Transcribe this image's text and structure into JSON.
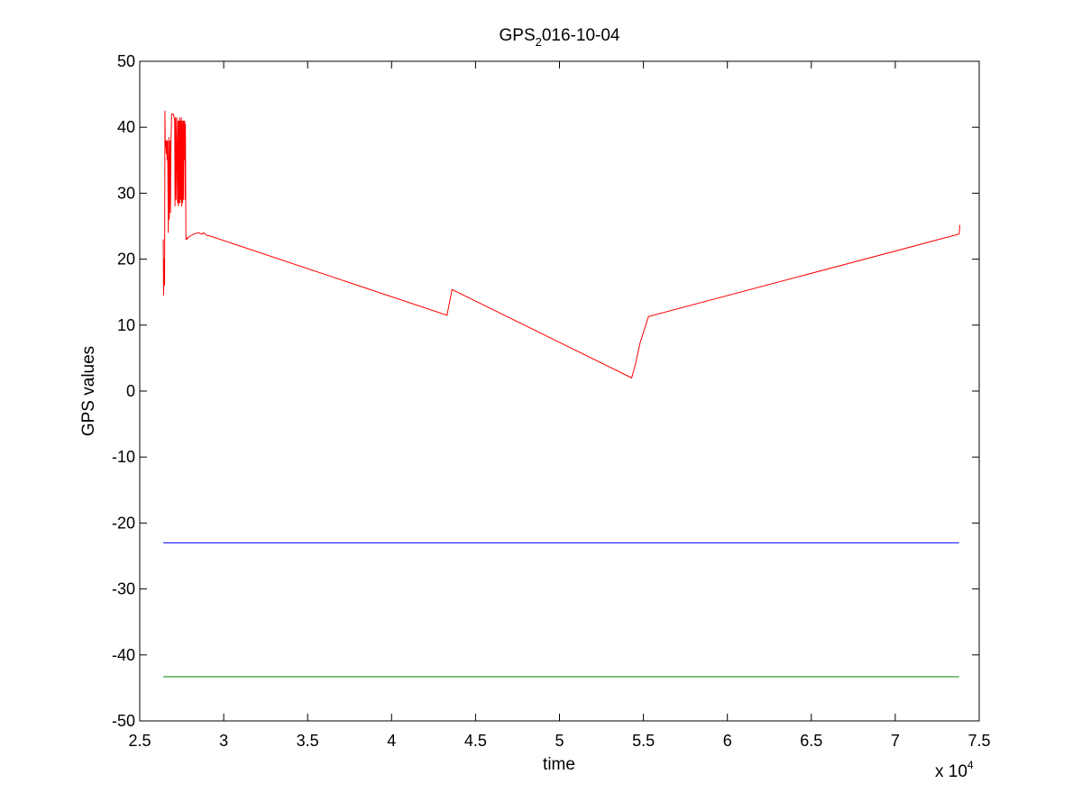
{
  "chart_data": {
    "type": "line",
    "title_main": "GPS",
    "title_sub": "2",
    "title_rest": "016-10-04",
    "xlabel": "time",
    "ylabel": "GPS values",
    "x_exponent_label": "x 10",
    "x_exponent_power": "4",
    "x_scale": 10000,
    "xlim": [
      25000,
      75000
    ],
    "ylim": [
      -50,
      50
    ],
    "x_ticks": [
      25000,
      30000,
      35000,
      40000,
      45000,
      50000,
      55000,
      60000,
      65000,
      70000,
      75000
    ],
    "x_tick_labels": [
      "2.5",
      "3",
      "3.5",
      "4",
      "4.5",
      "5",
      "5.5",
      "6",
      "6.5",
      "7",
      "7.5"
    ],
    "y_ticks": [
      50,
      40,
      30,
      20,
      10,
      0,
      -10,
      -20,
      -30,
      -40,
      -50
    ],
    "y_tick_labels": [
      "50",
      "40",
      "30",
      "20",
      "10",
      "0",
      "-10",
      "-20",
      "-30",
      "-40",
      "-50"
    ],
    "grid": false,
    "series": [
      {
        "color": "#ff0000",
        "x": [
          26400,
          26420,
          26450,
          26480,
          26500,
          26520,
          26550,
          26580,
          26600,
          26630,
          26660,
          26700,
          26730,
          26760,
          26800,
          26830,
          26860,
          26900,
          26950,
          27000,
          27050,
          27080,
          27100,
          27130,
          27160,
          27200,
          27250,
          27280,
          27300,
          27320,
          27350,
          27380,
          27400,
          27420,
          27450,
          27480,
          27500,
          27520,
          27550,
          27580,
          27600,
          27620,
          27650,
          27680,
          27700,
          27720,
          27750,
          27780,
          27800,
          27850,
          27900,
          28000,
          28200,
          28500,
          28700,
          28800,
          28900,
          29000,
          29200,
          43300,
          43600,
          54300,
          54500,
          54800,
          55300,
          73800,
          73850
        ],
        "y": [
          23.0,
          14.5,
          20.0,
          16.0,
          42.5,
          37.0,
          38.0,
          36.0,
          38.0,
          35.0,
          38.0,
          24.0,
          38.5,
          26.0,
          38.0,
          27.0,
          38.0,
          42.0,
          42.0,
          42.0,
          41.5,
          41.0,
          28.0,
          41.5,
          29.0,
          41.5,
          28.5,
          41.0,
          28.0,
          41.0,
          28.5,
          41.5,
          28.5,
          41.0,
          29.0,
          41.5,
          28.0,
          41.0,
          28.5,
          41.0,
          29.0,
          41.0,
          35.0,
          41.0,
          29.0,
          40.5,
          23.0,
          23.2,
          23.0,
          23.2,
          23.3,
          23.5,
          23.8,
          24.0,
          23.8,
          24.0,
          23.8,
          23.6,
          23.5,
          11.5,
          15.4,
          2.0,
          3.8,
          7.3,
          11.3,
          23.8,
          25.2
        ]
      },
      {
        "color": "#0000ff",
        "x": [
          26400,
          73800
        ],
        "y": [
          -23.0,
          -23.0
        ]
      },
      {
        "color": "#008000",
        "x": [
          26400,
          73800
        ],
        "y": [
          -43.3,
          -43.3
        ]
      }
    ]
  }
}
